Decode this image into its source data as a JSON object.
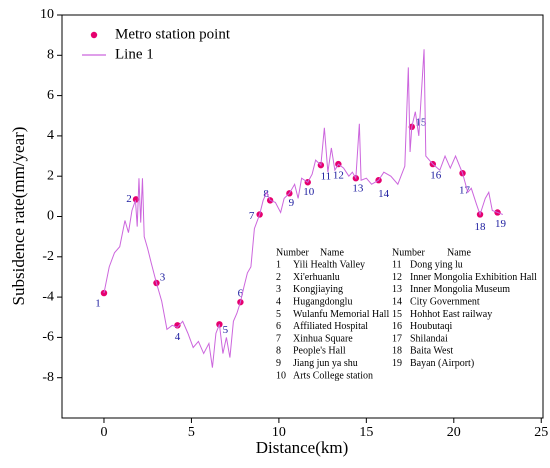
{
  "chart_data": {
    "type": "line",
    "xlabel": "Distance(km)",
    "ylabel": "Subsidence rate(mm/year)",
    "xlim": [
      -2.4,
      25.1
    ],
    "ylim": [
      -10,
      10
    ],
    "xticks": [
      0,
      5,
      10,
      15,
      20,
      25
    ],
    "yticks": [
      -8,
      -6,
      -4,
      -2,
      0,
      2,
      4,
      6,
      8,
      10
    ],
    "series": [
      {
        "name": "Metro station point",
        "type": "scatter",
        "color": "#e6006e",
        "x": [
          0,
          1.83,
          3.0,
          4.2,
          6.6,
          7.8,
          8.9,
          9.5,
          10.6,
          11.65,
          12.4,
          13.4,
          14.4,
          15.7,
          17.6,
          18.8,
          20.5,
          21.5,
          22.5
        ],
        "values": [
          -3.8,
          0.85,
          -3.3,
          -5.4,
          -5.35,
          -4.25,
          0.1,
          0.8,
          1.15,
          1.7,
          2.55,
          2.6,
          1.9,
          1.8,
          4.45,
          2.6,
          2.15,
          0.1,
          0.2
        ],
        "point_labels": [
          "1",
          "2",
          "3",
          "4",
          "5",
          "6",
          "7",
          "8",
          "9",
          "10",
          "11",
          "12",
          "13",
          "14",
          "15",
          "16",
          "17",
          "18",
          "19"
        ]
      },
      {
        "name": "Line 1",
        "type": "line",
        "color": "#cc66dd",
        "x": [
          0,
          0.3,
          0.6,
          0.9,
          1.2,
          1.4,
          1.6,
          1.8,
          1.9,
          2.0,
          2.1,
          2.2,
          2.3,
          2.5,
          2.7,
          3.0,
          3.3,
          3.6,
          3.9,
          4.2,
          4.5,
          4.8,
          5.1,
          5.4,
          5.7,
          6.0,
          6.2,
          6.4,
          6.6,
          6.8,
          7.0,
          7.2,
          7.4,
          7.6,
          7.8,
          8.0,
          8.2,
          8.4,
          8.6,
          8.9,
          9.1,
          9.3,
          9.5,
          9.8,
          10.1,
          10.3,
          10.6,
          10.9,
          11.1,
          11.3,
          11.65,
          11.9,
          12.1,
          12.4,
          12.6,
          12.8,
          13.0,
          13.2,
          13.4,
          13.7,
          14.0,
          14.2,
          14.4,
          14.6,
          14.7,
          15.0,
          15.3,
          15.7,
          16.0,
          16.4,
          16.8,
          17.2,
          17.4,
          17.5,
          17.6,
          17.8,
          18.0,
          18.3,
          18.4,
          18.6,
          18.8,
          19.2,
          19.5,
          19.8,
          20.1,
          20.5,
          20.8,
          21.0,
          21.3,
          21.5,
          21.8,
          22.0,
          22.2,
          22.5,
          22.8
        ],
        "values": [
          -3.8,
          -2.5,
          -1.8,
          -1.5,
          -0.2,
          -0.8,
          0.3,
          0.8,
          -0.5,
          1.9,
          -0.3,
          1.9,
          -1.0,
          -1.6,
          -2.3,
          -3.3,
          -4.2,
          -5.6,
          -5.4,
          -5.5,
          -5.2,
          -5.8,
          -6.5,
          -6.2,
          -6.8,
          -6.3,
          -7.5,
          -5.8,
          -5.35,
          -6.8,
          -6.0,
          -7.0,
          -5.2,
          -4.8,
          -4.25,
          -3.5,
          -2.8,
          -2.5,
          -0.6,
          0.1,
          0.8,
          1.2,
          0.8,
          0.7,
          0.2,
          0.9,
          1.15,
          1.6,
          0.9,
          1.9,
          1.7,
          2.1,
          2.8,
          2.55,
          4.4,
          2.2,
          3.4,
          2.3,
          2.6,
          2.4,
          2.0,
          2.2,
          1.9,
          4.6,
          1.8,
          1.9,
          1.6,
          1.8,
          2.2,
          2.0,
          1.6,
          2.5,
          7.4,
          3.2,
          4.45,
          5.2,
          4.0,
          8.3,
          3.0,
          2.8,
          2.6,
          2.3,
          3.0,
          2.4,
          3.0,
          2.15,
          1.2,
          1.4,
          0.6,
          0.1,
          0.9,
          1.2,
          0.3,
          0.2,
          0.1
        ]
      }
    ],
    "table": {
      "headers": [
        "Number",
        "Name"
      ],
      "names": [
        "Yili Health Valley",
        "Xi'erhuanlu",
        "Kongjiaying",
        "Hugangdonglu",
        "Wulanfu Memorial Hall",
        "Affiliated Hospital",
        "Xinhua Square",
        "People's Hall",
        "Jiang jun ya shu",
        "Arts College station",
        "Dong ying lu",
        "Inner Mongolia Exhibition Hall",
        "Inner Mongolia Museum",
        "City Government",
        "Hohhot East railway",
        "Houbutaqi",
        "Shilandai",
        "Baita West",
        "Bayan (Airport)"
      ]
    }
  }
}
